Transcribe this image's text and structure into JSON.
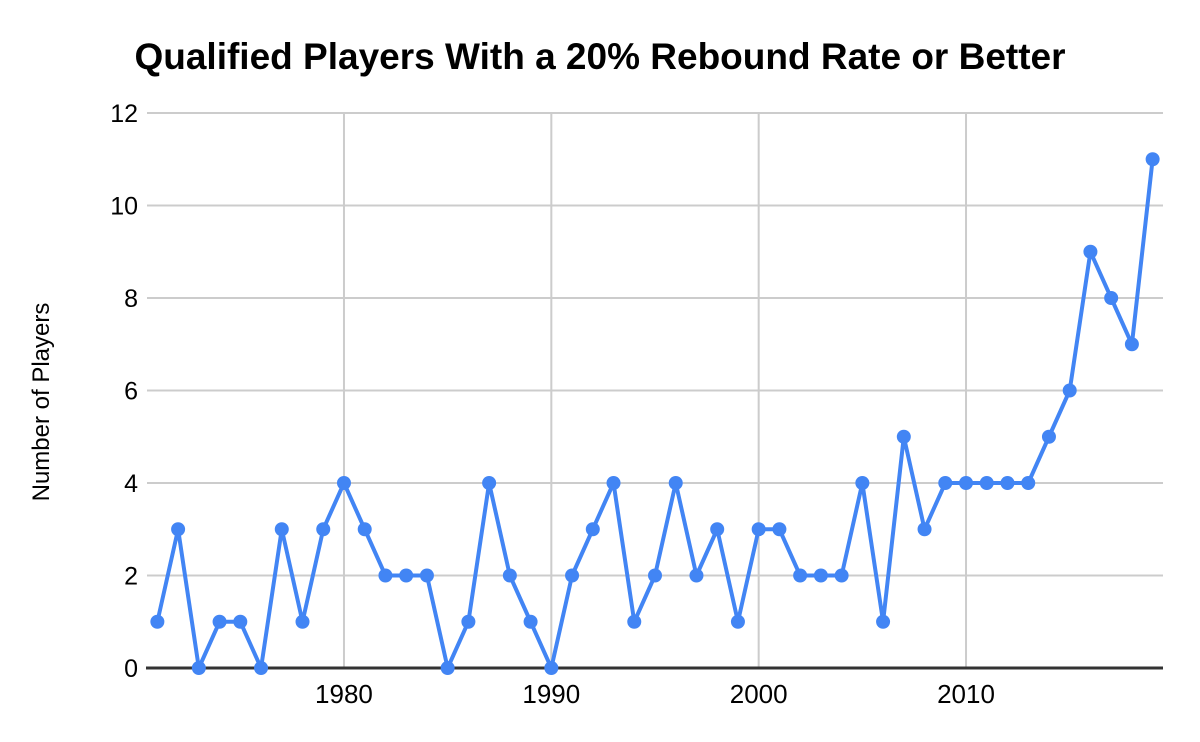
{
  "chart_data": {
    "type": "line",
    "title": "Qualified Players With a 20% Rebound Rate or Better",
    "xlabel": "",
    "ylabel": "Number of Players",
    "x": [
      1971,
      1972,
      1973,
      1974,
      1975,
      1976,
      1977,
      1978,
      1979,
      1980,
      1981,
      1982,
      1983,
      1984,
      1985,
      1986,
      1987,
      1988,
      1989,
      1990,
      1991,
      1992,
      1993,
      1994,
      1995,
      1996,
      1997,
      1998,
      1999,
      2000,
      2001,
      2002,
      2003,
      2004,
      2005,
      2006,
      2007,
      2008,
      2009,
      2010,
      2011,
      2012,
      2013,
      2014,
      2015,
      2016,
      2017,
      2018,
      2019
    ],
    "values": [
      1,
      3,
      0,
      1,
      1,
      0,
      3,
      1,
      3,
      4,
      3,
      2,
      2,
      2,
      0,
      1,
      4,
      2,
      1,
      0,
      2,
      3,
      4,
      1,
      2,
      4,
      2,
      3,
      1,
      3,
      3,
      2,
      2,
      2,
      4,
      1,
      5,
      3,
      4,
      4,
      4,
      4,
      4,
      5,
      6,
      9,
      8,
      7,
      11
    ],
    "ylim": [
      0,
      12
    ],
    "yticks": [
      0,
      2,
      4,
      6,
      8,
      10,
      12
    ],
    "xticks": [
      1980,
      1990,
      2000,
      2010
    ],
    "grid": true,
    "legend": "none",
    "colors": {
      "line": "#4285f4",
      "point": "#4285f4",
      "gridline": "#cccccc",
      "axis": "#333333",
      "text": "#000000"
    }
  }
}
